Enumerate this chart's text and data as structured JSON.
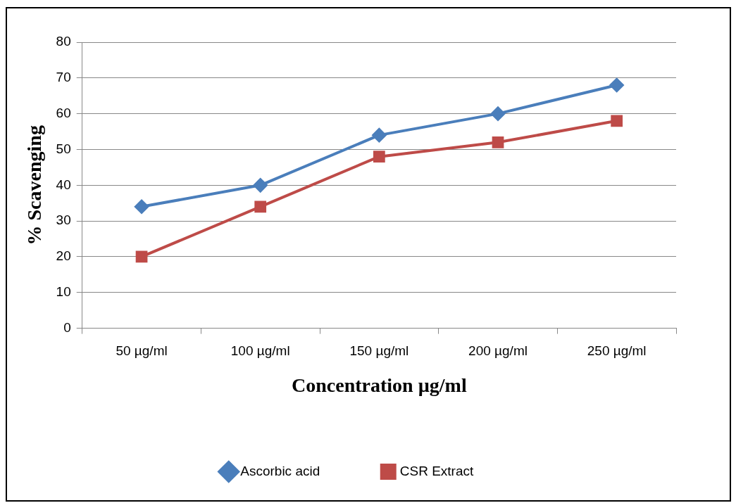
{
  "chart_data": {
    "type": "line",
    "xlabel": "Concentration µg/ml",
    "ylabel": "% Scavenging",
    "categories": [
      "50 µg/ml",
      "100 µg/ml",
      "150 µg/ml",
      "200 µg/ml",
      "250 µg/ml"
    ],
    "series": [
      {
        "name": "Ascorbic acid",
        "color": "#4a7ebb",
        "marker": "diamond",
        "values": [
          34,
          40,
          54,
          60,
          68
        ]
      },
      {
        "name": "CSR Extract",
        "color": "#be4b48",
        "marker": "square",
        "values": [
          20,
          34,
          48,
          52,
          58
        ]
      }
    ],
    "ylim": [
      0,
      80
    ],
    "yticks": [
      0,
      10,
      20,
      30,
      40,
      50,
      60,
      70,
      80
    ],
    "grid": "y",
    "legend": "bottom",
    "line_style": "solid"
  }
}
